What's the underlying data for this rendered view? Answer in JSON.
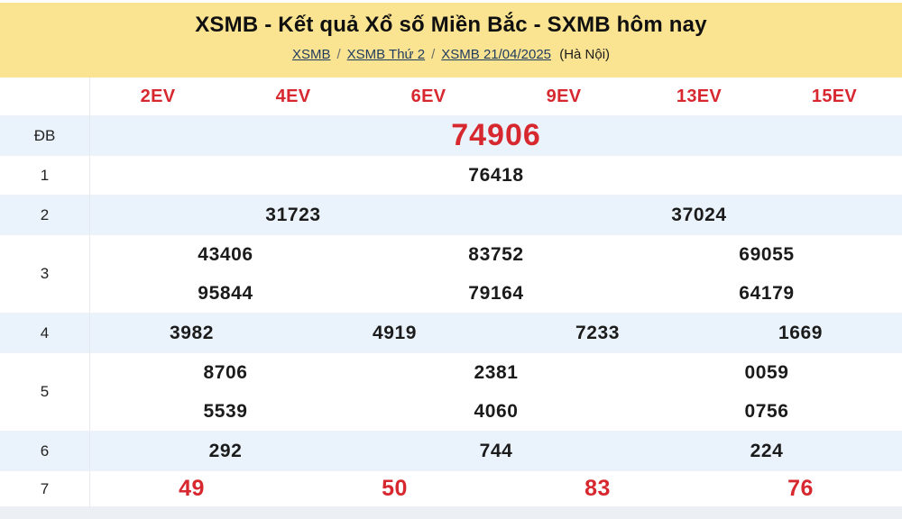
{
  "header": {
    "title": "XSMB - Kết quả Xổ số Miền Bắc - SXMB hôm nay",
    "breadcrumb_links": [
      "XSMB",
      "XSMB Thứ 2",
      "XSMB 21/04/2025"
    ],
    "breadcrumb_separator": "/",
    "breadcrumb_suffix": "(Hà Nội)"
  },
  "table": {
    "column_headers": [
      "2EV",
      "4EV",
      "6EV",
      "9EV",
      "13EV",
      "15EV"
    ],
    "rows": [
      {
        "label": "ĐB",
        "shaded": true,
        "value_style": "special",
        "lines": [
          [
            "74906"
          ]
        ]
      },
      {
        "label": "1",
        "shaded": false,
        "value_style": "normal",
        "lines": [
          [
            "76418"
          ]
        ]
      },
      {
        "label": "2",
        "shaded": true,
        "value_style": "normal",
        "lines": [
          [
            "31723",
            "37024"
          ]
        ]
      },
      {
        "label": "3",
        "shaded": false,
        "value_style": "normal",
        "lines": [
          [
            "43406",
            "83752",
            "69055"
          ],
          [
            "95844",
            "79164",
            "64179"
          ]
        ]
      },
      {
        "label": "4",
        "shaded": true,
        "value_style": "normal",
        "lines": [
          [
            "3982",
            "4919",
            "7233",
            "1669"
          ]
        ]
      },
      {
        "label": "5",
        "shaded": false,
        "value_style": "normal",
        "lines": [
          [
            "8706",
            "2381",
            "0059"
          ],
          [
            "5539",
            "4060",
            "0756"
          ]
        ]
      },
      {
        "label": "6",
        "shaded": true,
        "value_style": "normal",
        "lines": [
          [
            "292",
            "744",
            "224"
          ]
        ]
      },
      {
        "label": "7",
        "shaded": false,
        "value_style": "red",
        "lines": [
          [
            "49",
            "50",
            "83",
            "76"
          ]
        ]
      }
    ]
  },
  "colors": {
    "banner_yellow": "#FAE491",
    "shaded_row_blue": "#EAF3FB",
    "accent_red": "#D7282F",
    "link_navy": "#1F3A5F"
  }
}
